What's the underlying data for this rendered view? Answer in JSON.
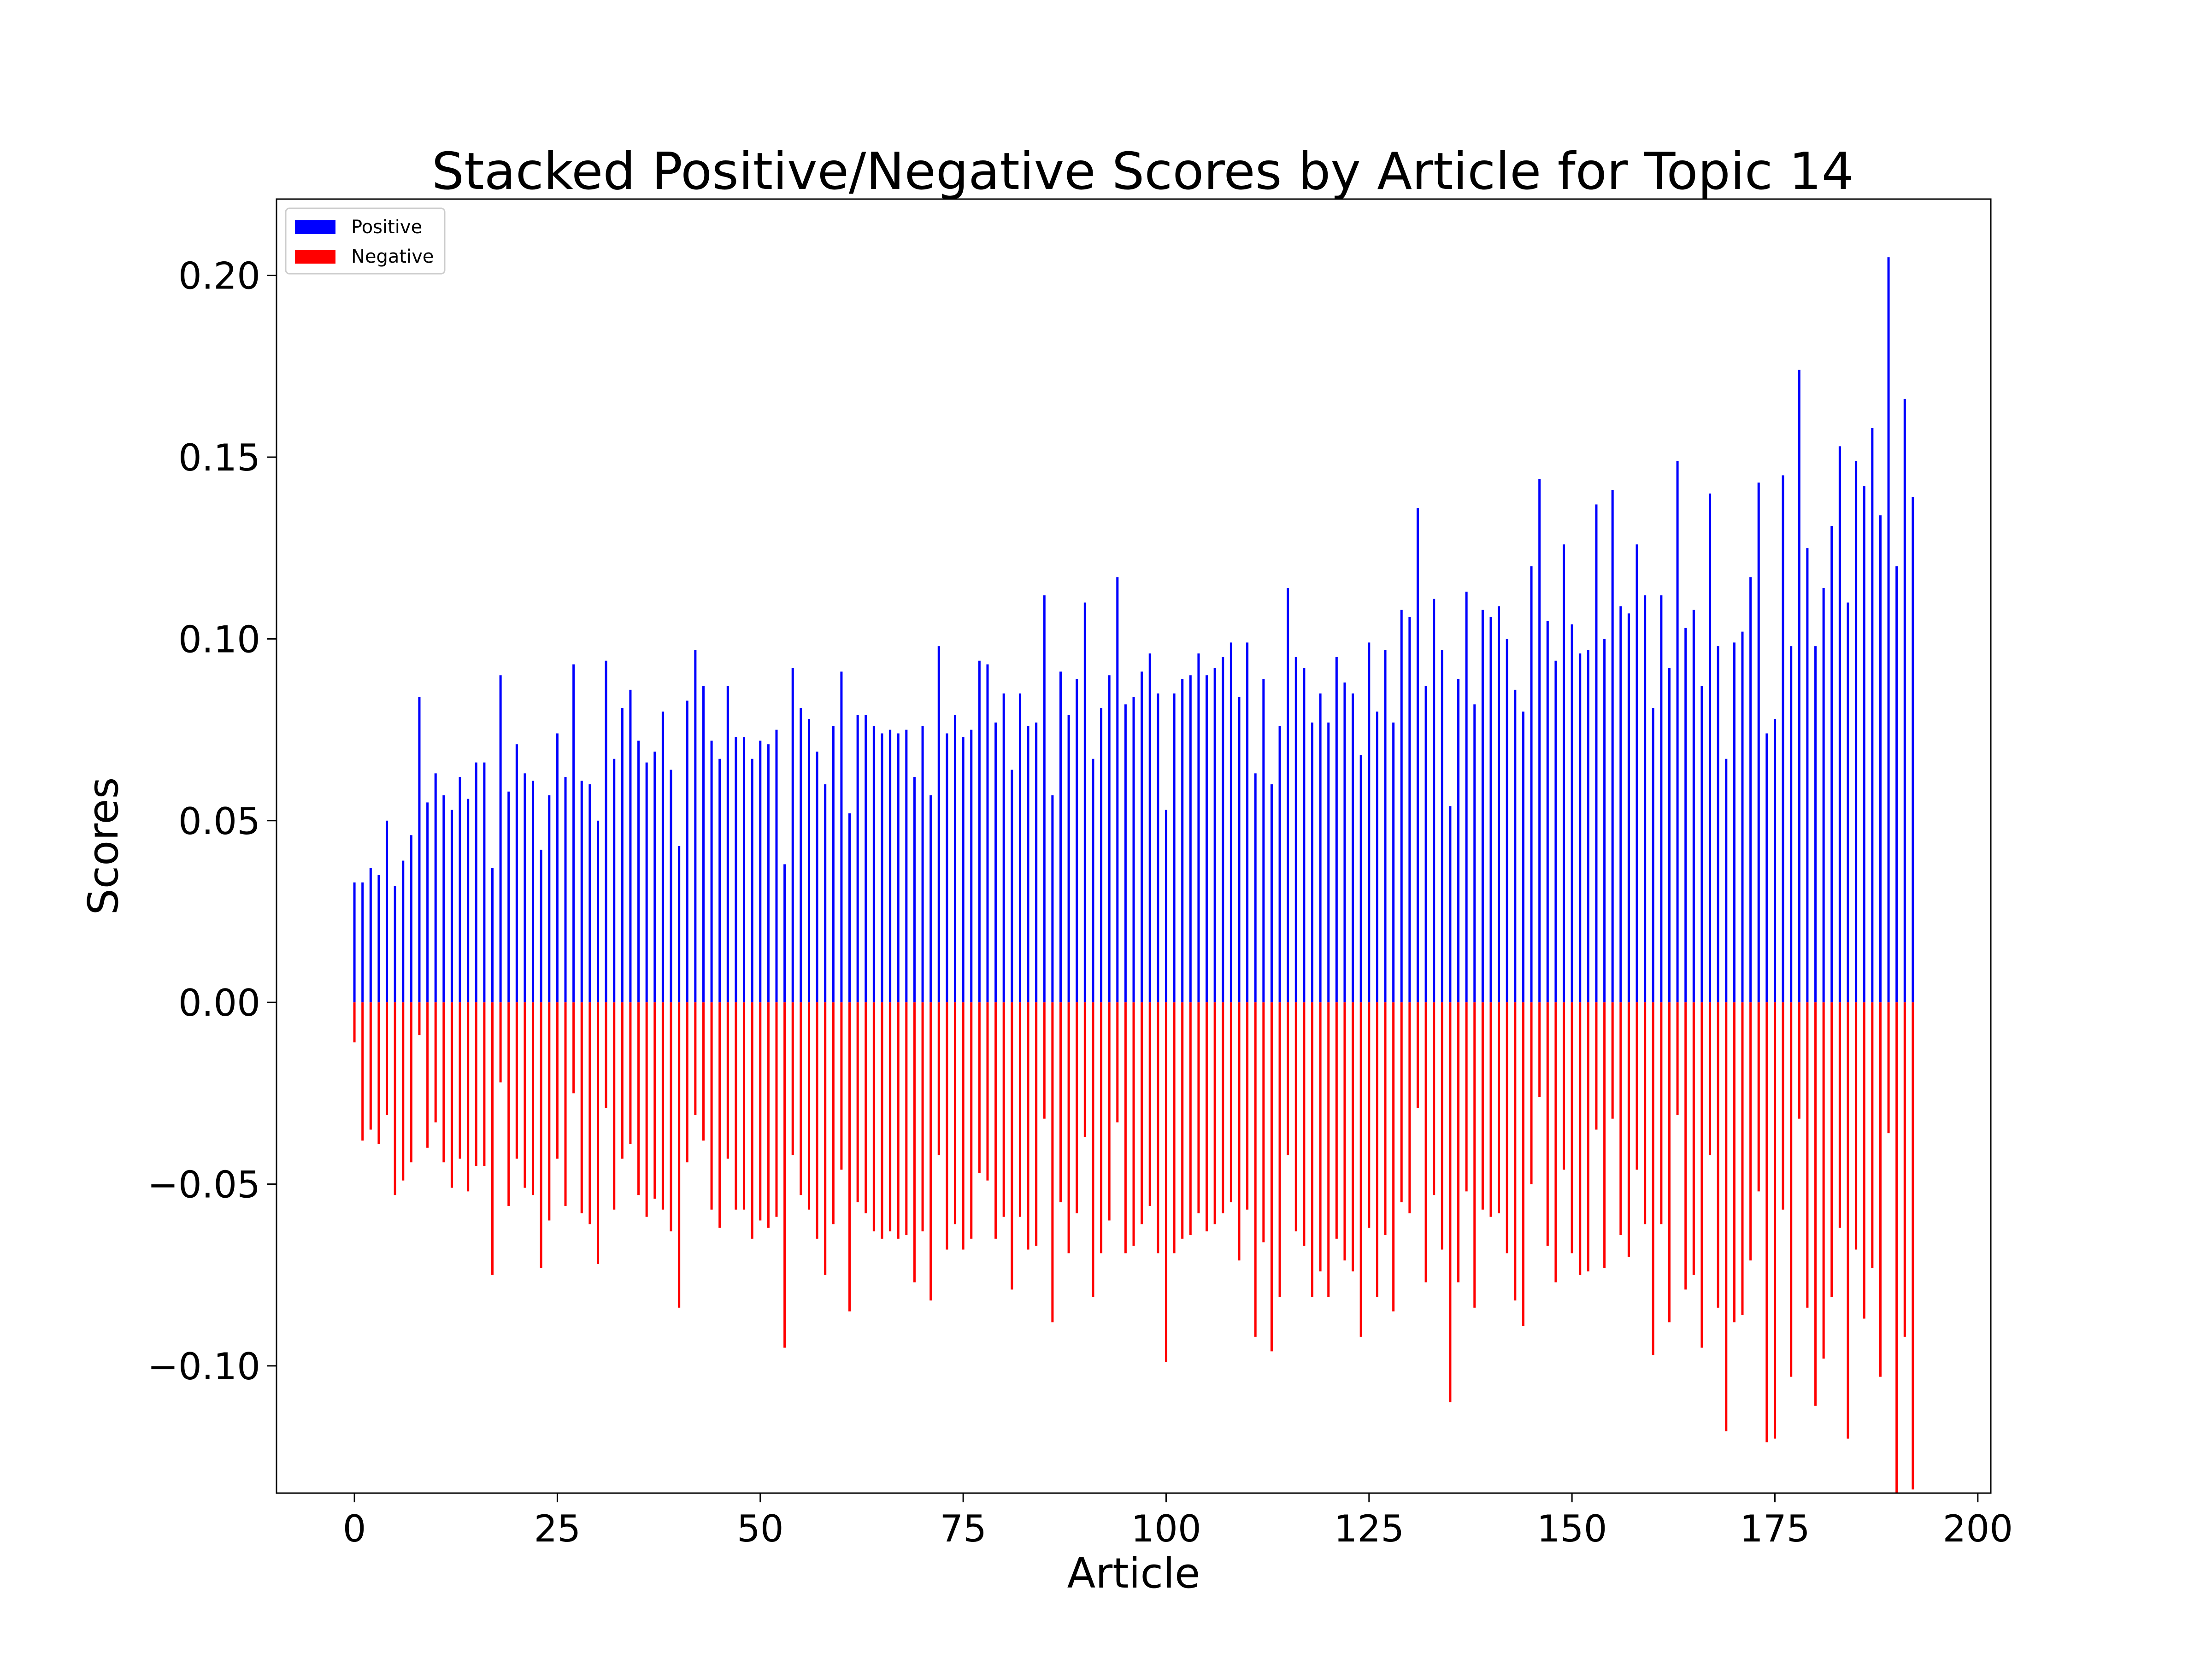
{
  "chart_data": {
    "type": "bar",
    "title": "Stacked Positive/Negative Scores by Article for Topic 14",
    "xlabel": "Article",
    "ylabel": "Scores",
    "xlim": [
      -9.6,
      201.6
    ],
    "ylim": [
      -0.135,
      0.221
    ],
    "xticks": [
      0,
      25,
      50,
      75,
      100,
      125,
      150,
      175,
      200
    ],
    "xtick_labels": [
      "0",
      "25",
      "50",
      "75",
      "100",
      "125",
      "150",
      "175",
      "200"
    ],
    "yticks": [
      -0.1,
      -0.05,
      0.0,
      0.05,
      0.1,
      0.15,
      0.2
    ],
    "ytick_labels": [
      "−0.10",
      "−0.05",
      "0.00",
      "0.05",
      "0.10",
      "0.15",
      "0.20"
    ],
    "legend": {
      "position": "top-left"
    },
    "grid": false,
    "series": [
      {
        "name": "Positive",
        "color": "#0000ff",
        "values": [
          0.033,
          0.033,
          0.037,
          0.035,
          0.05,
          0.032,
          0.039,
          0.046,
          0.084,
          0.055,
          0.063,
          0.057,
          0.053,
          0.062,
          0.056,
          0.066,
          0.066,
          0.037,
          0.09,
          0.058,
          0.071,
          0.063,
          0.061,
          0.042,
          0.057,
          0.074,
          0.062,
          0.093,
          0.061,
          0.06,
          0.05,
          0.094,
          0.067,
          0.081,
          0.086,
          0.072,
          0.066,
          0.069,
          0.08,
          0.064,
          0.043,
          0.083,
          0.097,
          0.087,
          0.072,
          0.067,
          0.087,
          0.073,
          0.073,
          0.067,
          0.072,
          0.071,
          0.075,
          0.038,
          0.092,
          0.081,
          0.078,
          0.069,
          0.06,
          0.076,
          0.091,
          0.052,
          0.079,
          0.079,
          0.076,
          0.074,
          0.075,
          0.074,
          0.075,
          0.062,
          0.076,
          0.057,
          0.098,
          0.074,
          0.079,
          0.073,
          0.075,
          0.094,
          0.093,
          0.077,
          0.085,
          0.064,
          0.085,
          0.076,
          0.077,
          0.112,
          0.057,
          0.091,
          0.079,
          0.089,
          0.11,
          0.067,
          0.081,
          0.09,
          0.117,
          0.082,
          0.084,
          0.091,
          0.096,
          0.085,
          0.053,
          0.085,
          0.089,
          0.09,
          0.096,
          0.09,
          0.092,
          0.095,
          0.099,
          0.084,
          0.099,
          0.063,
          0.089,
          0.06,
          0.076,
          0.114,
          0.095,
          0.092,
          0.077,
          0.085,
          0.077,
          0.095,
          0.088,
          0.085,
          0.068,
          0.099,
          0.08,
          0.097,
          0.077,
          0.108,
          0.106,
          0.136,
          0.087,
          0.111,
          0.097,
          0.054,
          0.089,
          0.113,
          0.082,
          0.108,
          0.106,
          0.109,
          0.1,
          0.086,
          0.08,
          0.12,
          0.144,
          0.105,
          0.094,
          0.126,
          0.104,
          0.096,
          0.097,
          0.137,
          0.1,
          0.141,
          0.109,
          0.107,
          0.126,
          0.112,
          0.081,
          0.112,
          0.092,
          0.149,
          0.103,
          0.108,
          0.087,
          0.14,
          0.098,
          0.067,
          0.099,
          0.102,
          0.117,
          0.143,
          0.074,
          0.078,
          0.145,
          0.098,
          0.174,
          0.125,
          0.098,
          0.114,
          0.131,
          0.153,
          0.11,
          0.149,
          0.142,
          0.158,
          0.134,
          0.205,
          0.12,
          0.166,
          0.139
        ]
      },
      {
        "name": "Negative",
        "color": "#ff0000",
        "values": [
          -0.011,
          -0.038,
          -0.035,
          -0.039,
          -0.031,
          -0.053,
          -0.049,
          -0.044,
          -0.009,
          -0.04,
          -0.033,
          -0.044,
          -0.051,
          -0.043,
          -0.052,
          -0.045,
          -0.045,
          -0.075,
          -0.022,
          -0.056,
          -0.043,
          -0.051,
          -0.053,
          -0.073,
          -0.06,
          -0.043,
          -0.056,
          -0.025,
          -0.058,
          -0.061,
          -0.072,
          -0.029,
          -0.057,
          -0.043,
          -0.039,
          -0.053,
          -0.059,
          -0.054,
          -0.057,
          -0.063,
          -0.084,
          -0.044,
          -0.031,
          -0.038,
          -0.057,
          -0.062,
          -0.043,
          -0.057,
          -0.057,
          -0.065,
          -0.06,
          -0.062,
          -0.059,
          -0.095,
          -0.042,
          -0.053,
          -0.057,
          -0.065,
          -0.075,
          -0.061,
          -0.046,
          -0.085,
          -0.055,
          -0.058,
          -0.063,
          -0.065,
          -0.063,
          -0.065,
          -0.064,
          -0.077,
          -0.063,
          -0.082,
          -0.042,
          -0.068,
          -0.061,
          -0.068,
          -0.065,
          -0.047,
          -0.049,
          -0.065,
          -0.059,
          -0.079,
          -0.059,
          -0.068,
          -0.067,
          -0.032,
          -0.088,
          -0.055,
          -0.069,
          -0.058,
          -0.037,
          -0.081,
          -0.069,
          -0.06,
          -0.033,
          -0.069,
          -0.067,
          -0.061,
          -0.056,
          -0.069,
          -0.099,
          -0.069,
          -0.065,
          -0.064,
          -0.058,
          -0.063,
          -0.061,
          -0.058,
          -0.055,
          -0.071,
          -0.057,
          -0.092,
          -0.066,
          -0.096,
          -0.081,
          -0.042,
          -0.063,
          -0.067,
          -0.081,
          -0.074,
          -0.081,
          -0.065,
          -0.071,
          -0.074,
          -0.092,
          -0.062,
          -0.081,
          -0.064,
          -0.085,
          -0.055,
          -0.058,
          -0.029,
          -0.077,
          -0.053,
          -0.068,
          -0.11,
          -0.077,
          -0.052,
          -0.084,
          -0.057,
          -0.059,
          -0.058,
          -0.069,
          -0.082,
          -0.089,
          -0.05,
          -0.026,
          -0.067,
          -0.077,
          -0.046,
          -0.069,
          -0.075,
          -0.074,
          -0.035,
          -0.073,
          -0.032,
          -0.064,
          -0.07,
          -0.046,
          -0.061,
          -0.097,
          -0.061,
          -0.088,
          -0.031,
          -0.079,
          -0.075,
          -0.095,
          -0.042,
          -0.084,
          -0.118,
          -0.088,
          -0.086,
          -0.071,
          -0.052,
          -0.121,
          -0.12,
          -0.057,
          -0.103,
          -0.032,
          -0.084,
          -0.111,
          -0.098,
          -0.081,
          -0.062,
          -0.12,
          -0.068,
          -0.087,
          -0.073,
          -0.103,
          -0.036,
          -0.135,
          -0.092,
          -0.134
        ]
      }
    ]
  }
}
